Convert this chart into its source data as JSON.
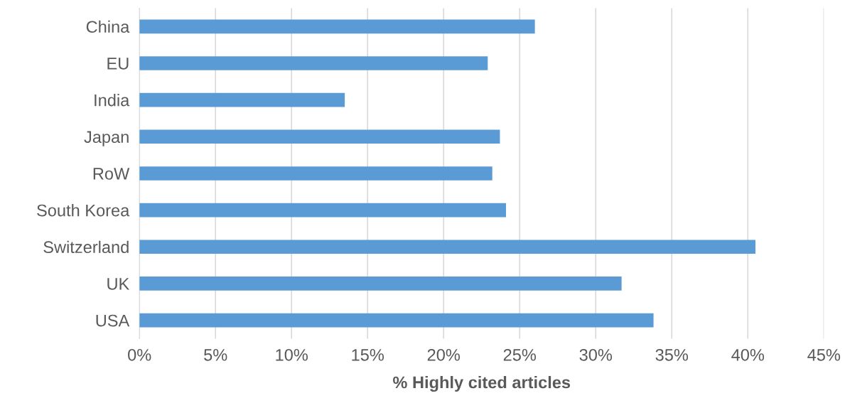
{
  "chart_data": {
    "type": "bar",
    "orientation": "horizontal",
    "xlabel": "% Highly cited articles",
    "categories": [
      "China",
      "EU",
      "India",
      "Japan",
      "RoW",
      "South Korea",
      "Switzerland",
      "UK",
      "USA"
    ],
    "values": [
      26.0,
      22.9,
      13.5,
      23.7,
      23.2,
      24.1,
      40.5,
      31.7,
      33.8
    ],
    "color": "#5b9bd5",
    "xlim": [
      0,
      45
    ],
    "xticks": [
      {
        "value": 0,
        "label": "0%"
      },
      {
        "value": 5,
        "label": "5%"
      },
      {
        "value": 10,
        "label": "10%"
      },
      {
        "value": 15,
        "label": "15%"
      },
      {
        "value": 20,
        "label": "20%"
      },
      {
        "value": 25,
        "label": "25%"
      },
      {
        "value": 30,
        "label": "30%"
      },
      {
        "value": 35,
        "label": "35%"
      },
      {
        "value": 40,
        "label": "40%"
      },
      {
        "value": 45,
        "label": "45%"
      }
    ],
    "grid": "x"
  }
}
